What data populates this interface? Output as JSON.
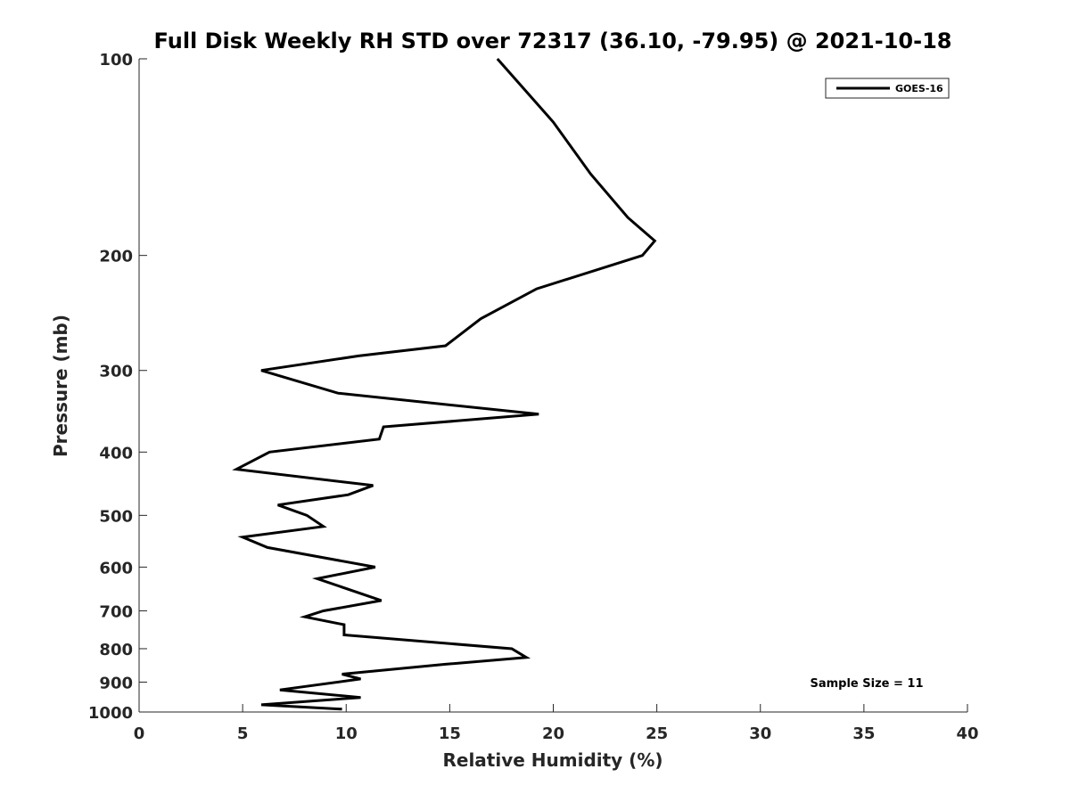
{
  "chart_data": {
    "type": "line",
    "title": "Full Disk Weekly RH STD over 72317 (36.10, -79.95) @ 2021-10-18",
    "xlabel": "Relative Humidity (%)",
    "ylabel": "Pressure (mb)",
    "xlim": [
      0,
      40
    ],
    "ylim": [
      100,
      1000
    ],
    "y_scale": "log",
    "y_reversed": true,
    "x_ticks": [
      0,
      5,
      10,
      15,
      20,
      25,
      30,
      35,
      40
    ],
    "y_ticks": [
      100,
      200,
      300,
      400,
      500,
      600,
      700,
      800,
      900,
      1000
    ],
    "grid": false,
    "legend_position": "top-right",
    "series": [
      {
        "name": "GOES-16",
        "color": "#000000",
        "points": [
          {
            "x": 17.3,
            "y": 100
          },
          {
            "x": 20.0,
            "y": 125
          },
          {
            "x": 21.8,
            "y": 150
          },
          {
            "x": 23.6,
            "y": 175
          },
          {
            "x": 24.9,
            "y": 190
          },
          {
            "x": 24.3,
            "y": 200
          },
          {
            "x": 19.2,
            "y": 225
          },
          {
            "x": 16.5,
            "y": 250
          },
          {
            "x": 14.8,
            "y": 275
          },
          {
            "x": 10.6,
            "y": 285
          },
          {
            "x": 5.9,
            "y": 300
          },
          {
            "x": 9.6,
            "y": 325
          },
          {
            "x": 19.3,
            "y": 350
          },
          {
            "x": 11.8,
            "y": 366
          },
          {
            "x": 11.6,
            "y": 382
          },
          {
            "x": 6.3,
            "y": 400
          },
          {
            "x": 4.7,
            "y": 425
          },
          {
            "x": 11.3,
            "y": 450
          },
          {
            "x": 10.1,
            "y": 465
          },
          {
            "x": 6.7,
            "y": 482
          },
          {
            "x": 8.1,
            "y": 500
          },
          {
            "x": 8.9,
            "y": 520
          },
          {
            "x": 5.0,
            "y": 540
          },
          {
            "x": 6.2,
            "y": 560
          },
          {
            "x": 11.4,
            "y": 600
          },
          {
            "x": 8.6,
            "y": 625
          },
          {
            "x": 11.7,
            "y": 675
          },
          {
            "x": 8.9,
            "y": 700
          },
          {
            "x": 8.0,
            "y": 715
          },
          {
            "x": 9.9,
            "y": 735
          },
          {
            "x": 9.9,
            "y": 762
          },
          {
            "x": 18.0,
            "y": 800
          },
          {
            "x": 18.7,
            "y": 825
          },
          {
            "x": 14.8,
            "y": 845
          },
          {
            "x": 9.8,
            "y": 875
          },
          {
            "x": 10.7,
            "y": 890
          },
          {
            "x": 6.8,
            "y": 925
          },
          {
            "x": 10.7,
            "y": 950
          },
          {
            "x": 5.9,
            "y": 975
          },
          {
            "x": 9.8,
            "y": 990
          }
        ]
      }
    ],
    "annotation": "Sample Size = 11"
  }
}
